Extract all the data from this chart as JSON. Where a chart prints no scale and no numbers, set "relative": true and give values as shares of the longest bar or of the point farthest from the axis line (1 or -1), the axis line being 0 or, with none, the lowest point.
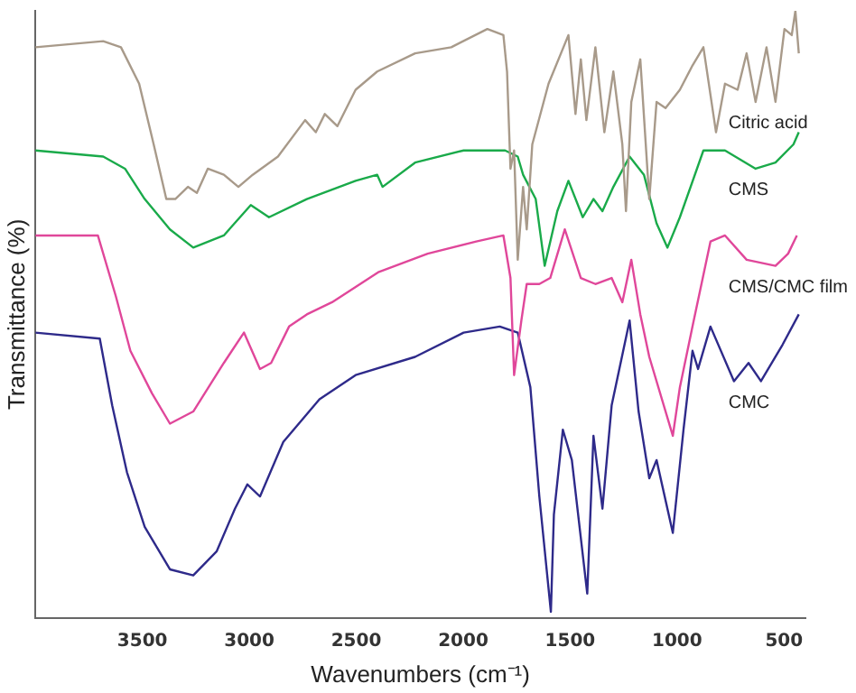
{
  "chart_data": {
    "type": "line",
    "xlabel": "Wavenumbers (cm⁻¹)",
    "ylabel": "Transmittance (%)",
    "relative": true,
    "xlim": [
      4000,
      400
    ],
    "xticks": [
      3500,
      3000,
      2500,
      2000,
      1500,
      1000,
      500
    ],
    "grid": false,
    "legend": false,
    "marker": "none",
    "line_style": "solid",
    "series": [
      {
        "name": "Citric acid",
        "color": "#a89a8a",
        "x": [
          4000,
          3683,
          3600,
          3515,
          3447,
          3388,
          3346,
          3287,
          3245,
          3194,
          3119,
          3051,
          2984,
          2866,
          2739,
          2689,
          2647,
          2588,
          2503,
          2402,
          2225,
          2056,
          1887,
          1812,
          1795,
          1779,
          1762,
          1745,
          1720,
          1703,
          1677,
          1601,
          1508,
          1475,
          1450,
          1424,
          1382,
          1340,
          1298,
          1256,
          1239,
          1214,
          1172,
          1130,
          1096,
          1054,
          987,
          928,
          877,
          818,
          776,
          717,
          675,
          633,
          582,
          540,
          498,
          464,
          447,
          431
        ],
        "values": [
          0.94,
          0.95,
          0.94,
          0.88,
          0.78,
          0.69,
          0.69,
          0.71,
          0.7,
          0.74,
          0.73,
          0.71,
          0.73,
          0.76,
          0.82,
          0.8,
          0.83,
          0.81,
          0.87,
          0.9,
          0.93,
          0.94,
          0.97,
          0.96,
          0.9,
          0.74,
          0.77,
          0.59,
          0.71,
          0.64,
          0.78,
          0.88,
          0.96,
          0.83,
          0.92,
          0.82,
          0.94,
          0.8,
          0.9,
          0.78,
          0.67,
          0.85,
          0.92,
          0.69,
          0.85,
          0.84,
          0.87,
          0.91,
          0.94,
          0.8,
          0.88,
          0.87,
          0.93,
          0.85,
          0.94,
          0.85,
          0.97,
          0.96,
          1.0,
          0.93
        ]
      },
      {
        "name": "CMS",
        "color": "#1aaa4a",
        "x": [
          4000,
          3683,
          3581,
          3489,
          3371,
          3262,
          3119,
          2993,
          2908,
          2731,
          2503,
          2402,
          2377,
          2225,
          1998,
          1804,
          1745,
          1720,
          1661,
          1619,
          1560,
          1508,
          1441,
          1391,
          1349,
          1298,
          1222,
          1155,
          1096,
          1045,
          987,
          877,
          776,
          633,
          540,
          456,
          431
        ],
        "values": [
          0.77,
          0.76,
          0.74,
          0.69,
          0.64,
          0.61,
          0.63,
          0.68,
          0.66,
          0.69,
          0.72,
          0.73,
          0.71,
          0.75,
          0.77,
          0.77,
          0.76,
          0.73,
          0.69,
          0.58,
          0.67,
          0.72,
          0.66,
          0.69,
          0.67,
          0.71,
          0.76,
          0.73,
          0.65,
          0.61,
          0.66,
          0.77,
          0.77,
          0.74,
          0.75,
          0.78,
          0.8
        ]
      },
      {
        "name": "CMS/CMC film",
        "color": "#e0479a",
        "x": [
          4000,
          3708,
          3624,
          3556,
          3455,
          3371,
          3262,
          3119,
          3025,
          2950,
          2898,
          2814,
          2731,
          2613,
          2394,
          2166,
          1939,
          1812,
          1779,
          1762,
          1728,
          1703,
          1644,
          1593,
          1525,
          1450,
          1382,
          1306,
          1256,
          1214,
          1172,
          1130,
          1020,
          987,
          928,
          844,
          776,
          675,
          540,
          481,
          440
        ],
        "values": [
          0.63,
          0.63,
          0.53,
          0.44,
          0.37,
          0.32,
          0.34,
          0.42,
          0.47,
          0.41,
          0.42,
          0.48,
          0.5,
          0.52,
          0.57,
          0.6,
          0.62,
          0.63,
          0.56,
          0.4,
          0.49,
          0.55,
          0.55,
          0.56,
          0.64,
          0.56,
          0.55,
          0.56,
          0.52,
          0.59,
          0.5,
          0.43,
          0.3,
          0.38,
          0.48,
          0.62,
          0.63,
          0.59,
          0.58,
          0.6,
          0.63
        ]
      },
      {
        "name": "CMC",
        "color": "#2e2a8a",
        "x": [
          4000,
          3699,
          3641,
          3572,
          3489,
          3371,
          3262,
          3152,
          3067,
          3009,
          2950,
          2841,
          2672,
          2503,
          2225,
          1998,
          1829,
          1745,
          1686,
          1644,
          1590,
          1576,
          1534,
          1492,
          1420,
          1391,
          1349,
          1306,
          1222,
          1180,
          1130,
          1096,
          1020,
          970,
          928,
          902,
          844,
          734,
          666,
          608,
          507,
          431
        ],
        "values": [
          0.47,
          0.46,
          0.35,
          0.24,
          0.15,
          0.08,
          0.07,
          0.11,
          0.18,
          0.22,
          0.2,
          0.29,
          0.36,
          0.4,
          0.43,
          0.47,
          0.48,
          0.47,
          0.38,
          0.2,
          0.01,
          0.17,
          0.31,
          0.26,
          0.04,
          0.3,
          0.18,
          0.35,
          0.49,
          0.34,
          0.23,
          0.26,
          0.14,
          0.31,
          0.44,
          0.41,
          0.48,
          0.39,
          0.42,
          0.39,
          0.45,
          0.5
        ]
      }
    ]
  }
}
